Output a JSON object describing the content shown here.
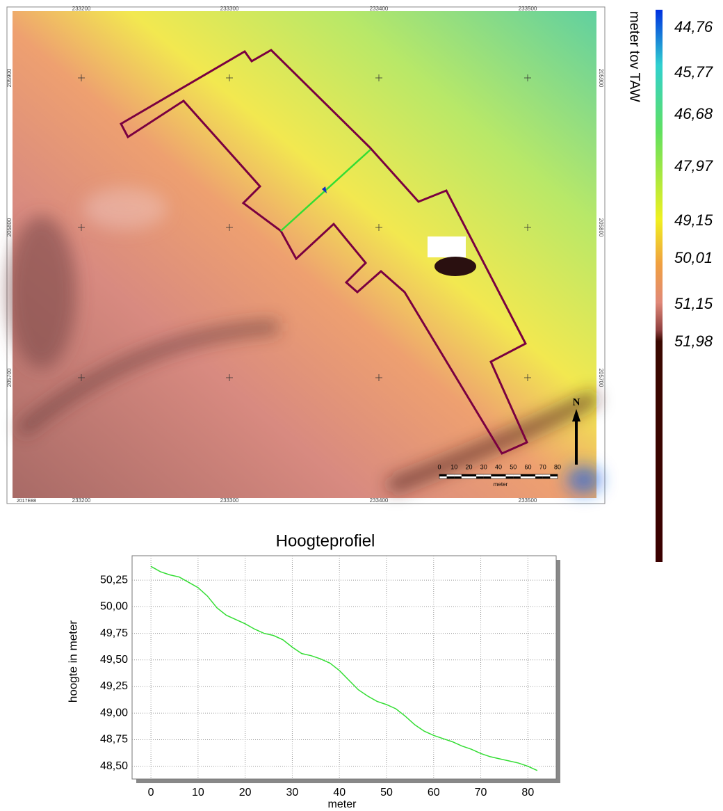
{
  "map": {
    "x_labels": [
      "233200",
      "233300",
      "233400",
      "233500"
    ],
    "y_labels": [
      "205900",
      "205800",
      "205700"
    ],
    "corner_label": "2017E88",
    "north": "N",
    "scale_bar": {
      "labels": [
        "0",
        "10",
        "20",
        "30",
        "40",
        "50",
        "60",
        "70",
        "80"
      ],
      "unit": "meter"
    }
  },
  "legend": {
    "title": "meter tov TAW",
    "labels": [
      "44,76",
      "45,77",
      "46,68",
      "47,97",
      "49,15",
      "50,01",
      "51,15",
      "51,98"
    ]
  },
  "chart_data": {
    "type": "line",
    "title": "Hoogteprofiel",
    "x_label": "meter",
    "y_label": "hoogte in meter",
    "x": [
      0,
      2,
      4,
      6,
      8,
      10,
      12,
      14,
      16,
      18,
      20,
      22,
      24,
      26,
      28,
      30,
      32,
      34,
      36,
      38,
      40,
      42,
      44,
      46,
      48,
      50,
      52,
      54,
      56,
      58,
      60,
      62,
      64,
      66,
      68,
      70,
      72,
      74,
      76,
      78,
      80,
      82
    ],
    "series": [
      {
        "color": "#33dd33",
        "values": [
          50.38,
          50.33,
          50.3,
          50.28,
          50.23,
          50.18,
          50.1,
          49.99,
          49.92,
          49.88,
          49.84,
          49.79,
          49.75,
          49.73,
          49.69,
          49.62,
          49.56,
          49.54,
          49.51,
          49.47,
          49.4,
          49.31,
          49.22,
          49.16,
          49.11,
          49.08,
          49.04,
          48.97,
          48.89,
          48.83,
          48.79,
          48.76,
          48.73,
          48.69,
          48.66,
          48.62,
          48.59,
          48.57,
          48.55,
          48.53,
          48.5,
          48.46
        ]
      }
    ],
    "xlim": [
      -4,
      86
    ],
    "ylim": [
      48.38,
      50.48
    ],
    "xticks": [
      0,
      10,
      20,
      30,
      40,
      50,
      60,
      70,
      80
    ],
    "yticks": [
      {
        "value": 48.5,
        "label": "48,50"
      },
      {
        "value": 48.75,
        "label": "48,75"
      },
      {
        "value": 49,
        "label": "49,00"
      },
      {
        "value": 49.25,
        "label": "49,25"
      },
      {
        "value": 49.5,
        "label": "49,50"
      },
      {
        "value": 49.75,
        "label": "49,75"
      },
      {
        "value": 50,
        "label": "50,00"
      },
      {
        "value": 50.25,
        "label": "50,25"
      }
    ],
    "grid": true
  }
}
